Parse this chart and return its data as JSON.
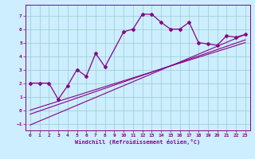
{
  "title": "",
  "xlabel": "Windchill (Refroidissement éolien,°C)",
  "background_color": "#cceeff",
  "grid_color": "#99cccc",
  "line_color": "#880088",
  "xlim": [
    -0.5,
    23.5
  ],
  "ylim": [
    -1.5,
    7.8
  ],
  "xticks": [
    0,
    1,
    2,
    3,
    4,
    5,
    6,
    7,
    8,
    9,
    10,
    11,
    12,
    13,
    14,
    15,
    16,
    17,
    18,
    19,
    20,
    21,
    22,
    23
  ],
  "yticks": [
    -1,
    0,
    1,
    2,
    3,
    4,
    5,
    6,
    7
  ],
  "series1_x": [
    0,
    1,
    2,
    3,
    4,
    5,
    6,
    7,
    8,
    10,
    11,
    12,
    13,
    14,
    15,
    16,
    17,
    18,
    19,
    20,
    21,
    22,
    23
  ],
  "series1_y": [
    2.0,
    2.0,
    2.0,
    0.8,
    1.8,
    3.0,
    2.5,
    4.2,
    3.2,
    5.8,
    6.0,
    7.1,
    7.1,
    6.5,
    6.0,
    6.0,
    6.5,
    5.0,
    4.9,
    4.8,
    5.5,
    5.4,
    5.6
  ],
  "line1_x": [
    0,
    23
  ],
  "line1_y": [
    0.0,
    5.0
  ],
  "line2_x": [
    0,
    23
  ],
  "line2_y": [
    -0.3,
    5.2
  ],
  "line3_x": [
    0,
    23
  ],
  "line3_y": [
    -1.1,
    5.6
  ]
}
